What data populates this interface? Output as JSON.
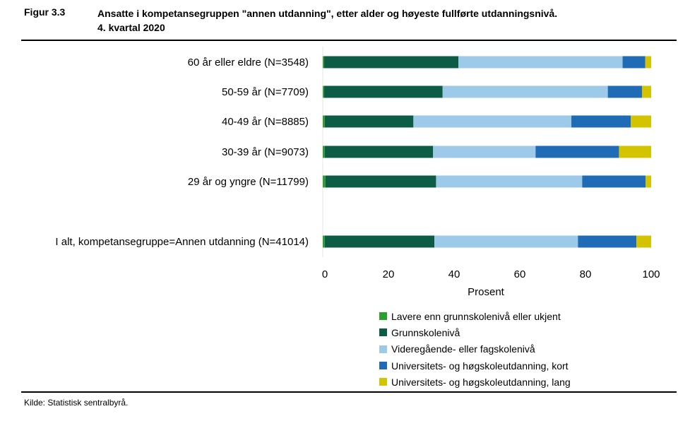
{
  "figure": {
    "label": "Figur 3.3",
    "title_line1": "Ansatte i kompetansegruppen \"annen utdanning\", etter alder og høyeste fullførte utdanningsnivå.",
    "title_line2": "4. kvartal 2020"
  },
  "source": "Kilde: Statistisk sentralbyrå.",
  "chart_data": {
    "type": "bar",
    "orientation": "horizontal",
    "stacked": true,
    "categories": [
      "60 år eller eldre (N=3548)",
      "50-59 år (N=7709)",
      "40-49 år (N=8885)",
      "30-39 år (N=9073)",
      "29 år og yngre (N=11799)",
      "I alt, kompetansegruppe=Annen utdanning (N=41014)"
    ],
    "series": [
      {
        "name": "Lavere enn grunnskolenivå eller ukjent",
        "color": "#2ca02c",
        "values": [
          0.4,
          0.4,
          0.6,
          0.6,
          0.8,
          0.6
        ]
      },
      {
        "name": "Grunnskolenivå",
        "color": "#0d5c45",
        "values": [
          40.9,
          36.1,
          27.0,
          33.0,
          33.7,
          33.4
        ]
      },
      {
        "name": "Videregående- eller fagskolenivå",
        "color": "#9ecae9",
        "values": [
          50.0,
          50.3,
          48.1,
          31.2,
          44.5,
          43.7
        ]
      },
      {
        "name": "Universitets- og høgskoleutdanning, kort",
        "color": "#1f6bb5",
        "values": [
          6.9,
          10.4,
          18.1,
          25.4,
          19.3,
          17.8
        ]
      },
      {
        "name": "Universitets- og høgskoleutdanning, lang",
        "color": "#d4c400",
        "values": [
          1.8,
          2.8,
          6.2,
          9.8,
          1.7,
          4.5
        ]
      }
    ],
    "xlabel": "Prosent",
    "xlim": [
      0,
      100
    ],
    "xticks": [
      0,
      20,
      40,
      60,
      80,
      100
    ],
    "legend_position": "bottom-right"
  }
}
